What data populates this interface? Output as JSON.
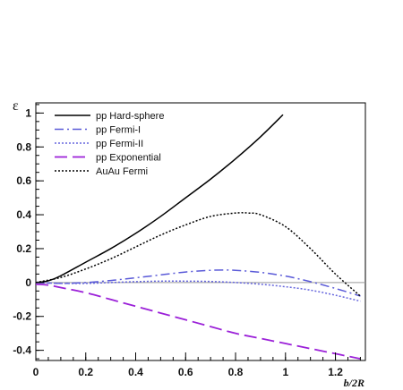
{
  "chart_data": {
    "type": "line",
    "title": "",
    "xlabel": "b/2R",
    "ylabel": "ε",
    "xlim": [
      0,
      1.32
    ],
    "ylim": [
      -0.46,
      1.06
    ],
    "xticks": [
      0,
      0.2,
      0.4,
      0.6,
      0.8,
      1,
      1.2
    ],
    "xtick_labels": [
      "0",
      "0.2",
      "0.4",
      "0.6",
      "0.8",
      "1",
      "1.2"
    ],
    "yticks": [
      -0.4,
      -0.2,
      0,
      0.2,
      0.4,
      0.6,
      0.8,
      1
    ],
    "ytick_labels": [
      "-0.4",
      "-0.2",
      "0",
      "0.2",
      "0.4",
      "0.6",
      "0.8",
      "1"
    ],
    "grid": false,
    "zero_line": true,
    "legend_position": "top-left",
    "series": [
      {
        "name": "pp Hard-sphere",
        "color": "#000000",
        "dash": "solid",
        "x": [
          0,
          0.05,
          0.1,
          0.2,
          0.3,
          0.4,
          0.5,
          0.6,
          0.7,
          0.8,
          0.9,
          0.99
        ],
        "y": [
          0,
          0.01,
          0.04,
          0.12,
          0.2,
          0.29,
          0.39,
          0.5,
          0.61,
          0.73,
          0.86,
          0.99
        ]
      },
      {
        "name": "pp Fermi-I",
        "color": "#5a5ad8",
        "dash": "dashdot",
        "x": [
          0,
          0.1,
          0.2,
          0.3,
          0.4,
          0.5,
          0.6,
          0.7,
          0.75,
          0.8,
          0.9,
          1.0,
          1.1,
          1.2,
          1.3
        ],
        "y": [
          0,
          -0.005,
          0.0,
          0.012,
          0.028,
          0.045,
          0.062,
          0.072,
          0.074,
          0.072,
          0.06,
          0.038,
          0.005,
          -0.035,
          -0.08
        ]
      },
      {
        "name": "pp Fermi-II",
        "color": "#6666dd",
        "dash": "dotted",
        "x": [
          0,
          0.1,
          0.2,
          0.3,
          0.4,
          0.5,
          0.6,
          0.7,
          0.8,
          0.9,
          1.0,
          1.1,
          1.2,
          1.3
        ],
        "y": [
          0,
          -0.005,
          -0.005,
          0.0,
          0.005,
          0.008,
          0.008,
          0.006,
          0.0,
          -0.01,
          -0.025,
          -0.045,
          -0.075,
          -0.11
        ]
      },
      {
        "name": "pp Exponential",
        "color": "#9b20d8",
        "dash": "longdash",
        "x": [
          0,
          0.05,
          0.1,
          0.2,
          0.3,
          0.4,
          0.5,
          0.6,
          0.7,
          0.8,
          0.9,
          1.0,
          1.1,
          1.2,
          1.3
        ],
        "y": [
          -0.01,
          -0.015,
          -0.03,
          -0.06,
          -0.1,
          -0.14,
          -0.18,
          -0.22,
          -0.26,
          -0.3,
          -0.33,
          -0.36,
          -0.39,
          -0.42,
          -0.45
        ]
      },
      {
        "name": "AuAu Fermi",
        "color": "#000000",
        "dash": "finedot",
        "x": [
          0,
          0.1,
          0.2,
          0.3,
          0.4,
          0.5,
          0.6,
          0.7,
          0.8,
          0.85,
          0.9,
          1.0,
          1.1,
          1.2,
          1.3
        ],
        "y": [
          0,
          0.03,
          0.08,
          0.14,
          0.21,
          0.28,
          0.34,
          0.39,
          0.41,
          0.41,
          0.4,
          0.33,
          0.2,
          0.05,
          -0.08
        ]
      }
    ]
  }
}
